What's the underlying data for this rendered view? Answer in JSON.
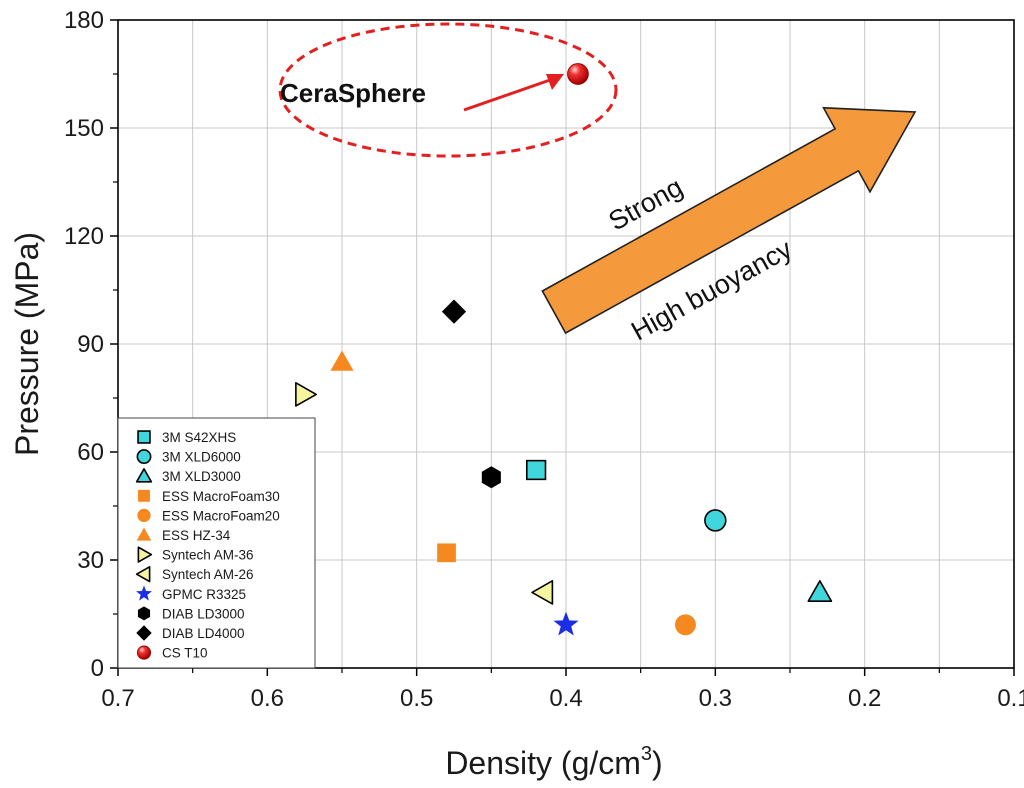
{
  "chart_data": {
    "type": "scatter",
    "xlabel": "Density (g/cm",
    "xlabel_sup": "3",
    "xlabel_end": ")",
    "ylabel": "Pressure (MPa)",
    "xlim": [
      0.7,
      0.1
    ],
    "ylim": [
      0,
      180
    ],
    "x_ticks": [
      0.7,
      0.6,
      0.5,
      0.4,
      0.3,
      0.2,
      0.1
    ],
    "x_tick_labels": [
      "0.7",
      "0.6",
      "0.5",
      "0.4",
      "0.3",
      "0.2",
      "0.1"
    ],
    "y_ticks": [
      0,
      30,
      60,
      90,
      120,
      150,
      180
    ],
    "y_tick_labels": [
      "0",
      "30",
      "60",
      "90",
      "120",
      "150",
      "180"
    ],
    "x_reversed": true,
    "grid": true,
    "legend_position": "bottom-left",
    "series": [
      {
        "name": "3M S42XHS",
        "marker": "square",
        "color": "#3fd6dc",
        "x": 0.42,
        "y": 55
      },
      {
        "name": "3M XLD6000",
        "marker": "circle",
        "color": "#3fd6dc",
        "x": 0.3,
        "y": 41
      },
      {
        "name": "3M XLD3000",
        "marker": "triangle-up",
        "color": "#3fd6dc",
        "x": 0.23,
        "y": 21
      },
      {
        "name": "ESS MacroFoam30",
        "marker": "square",
        "color": "#f5891f",
        "x": 0.48,
        "y": 32
      },
      {
        "name": "ESS MacroFoam20",
        "marker": "circle",
        "color": "#f5891f",
        "x": 0.32,
        "y": 12
      },
      {
        "name": "ESS HZ-34",
        "marker": "triangle-up",
        "color": "#f5891f",
        "x": 0.55,
        "y": 85
      },
      {
        "name": "Syntech AM-36",
        "marker": "triangle-right",
        "color": "#f5f5a0",
        "x": 0.575,
        "y": 76
      },
      {
        "name": "Syntech AM-26",
        "marker": "triangle-left",
        "color": "#f5f5a0",
        "x": 0.415,
        "y": 21
      },
      {
        "name": "GPMC R3325",
        "marker": "star",
        "color": "#1a2ee6",
        "x": 0.4,
        "y": 12
      },
      {
        "name": "DIAB LD3000",
        "marker": "hexagon",
        "color": "#000000",
        "x": 0.45,
        "y": 53
      },
      {
        "name": "DIAB LD4000",
        "marker": "diamond",
        "color": "#000000",
        "x": 0.475,
        "y": 99
      },
      {
        "name": "CS T10",
        "marker": "sphere",
        "color": "#e01010",
        "x": 0.392,
        "y": 165
      }
    ],
    "annotations": {
      "callout": "CeraSphere",
      "arrow_text_1": "Strong",
      "arrow_text_2": "High buoyancy"
    }
  },
  "colors": {
    "grid": "#c8c8c8",
    "axis": "#000000",
    "ellipse": "#e41f1f",
    "callout_arrow": "#e41f1f",
    "big_arrow_fill": "#f59a3c",
    "big_arrow_stroke": "#222222",
    "legend_border": "#444444"
  }
}
